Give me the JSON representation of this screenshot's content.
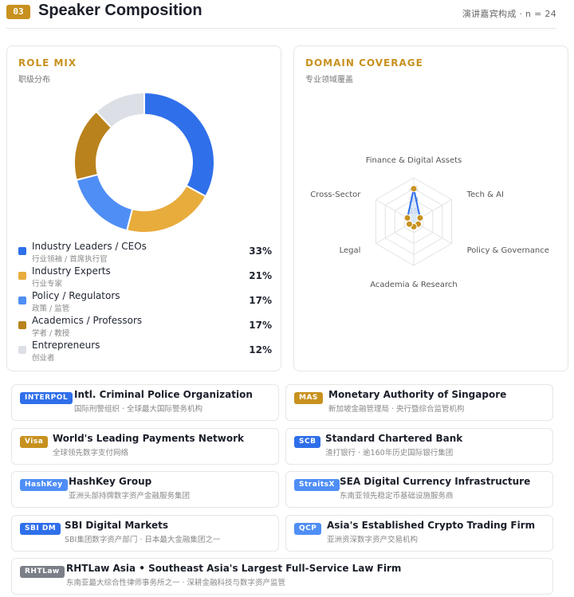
{
  "header": {
    "section_number": "03",
    "title": "Speaker Composition",
    "meta": "演讲嘉宾构成 · n = 24"
  },
  "role_mix": {
    "title": "ROLE MIX",
    "subtitle": "职级分布",
    "items": [
      {
        "label": "Industry Leaders / CEOs",
        "sub": "行业领袖 / 首席执行官",
        "pct": "33%",
        "value": 33,
        "color": "#2f6fea"
      },
      {
        "label": "Industry Experts",
        "sub": "行业专家",
        "pct": "21%",
        "value": 21,
        "color": "#e8ac3c"
      },
      {
        "label": "Policy / Regulators",
        "sub": "政策 / 监管",
        "pct": "17%",
        "value": 17,
        "color": "#4f8ef5"
      },
      {
        "label": "Academics / Professors",
        "sub": "学者 / 教授",
        "pct": "17%",
        "value": 17,
        "color": "#b9821c"
      },
      {
        "label": "Entrepreneurs",
        "sub": "创业者",
        "pct": "12%",
        "value": 12,
        "color": "#dcdfe6"
      }
    ]
  },
  "domain_coverage": {
    "title": "DOMAIN COVERAGE",
    "subtitle": "专业领域覆盖"
  },
  "chart_data": [
    {
      "type": "pie",
      "categories": [
        "Industry Leaders / CEOs",
        "Industry Experts",
        "Policy / Regulators",
        "Academics / Professors",
        "Entrepreneurs"
      ],
      "values": [
        33,
        21,
        17,
        17,
        12
      ]
    },
    {
      "type": "radar",
      "categories": [
        "Finance & Digital Assets",
        "Tech & AI",
        "Policy & Governance",
        "Academia & Research",
        "Legal",
        "Cross-Sector"
      ],
      "values": [
        45,
        10,
        7,
        7,
        7,
        10
      ],
      "rlim": [
        0,
        60
      ],
      "tick_labels": [
        "15",
        "30",
        "45"
      ],
      "colors": {
        "line": "#2f6fea",
        "fill": "#cfe0fb",
        "point": "#c8911f"
      }
    }
  ],
  "orgs": [
    {
      "badge": "INTERPOL",
      "badge_color": "#2f6fea",
      "name": "Intl. Criminal Police Organization",
      "desc": "国际刑警组织 · 全球最大国际警务机构"
    },
    {
      "badge": "MAS",
      "badge_color": "#c8911f",
      "name": "Monetary Authority of Singapore",
      "desc": "新加坡金融管理局 · 央行暨综合监管机构"
    },
    {
      "badge": "Visa",
      "badge_color": "#c8911f",
      "name": "World's Leading Payments Network",
      "desc": "全球领先数字支付网络"
    },
    {
      "badge": "SCB",
      "badge_color": "#2f6fea",
      "name": "Standard Chartered Bank",
      "desc": "渣打银行 · 逾160年历史国际银行集团"
    },
    {
      "badge": "HashKey",
      "badge_color": "#4f8ef5",
      "name": "HashKey Group",
      "desc": "亚洲头部持牌数字资产金融服务集团"
    },
    {
      "badge": "StraitsX",
      "badge_color": "#4f8ef5",
      "name": "SEA Digital Currency Infrastructure",
      "desc": "东南亚领先稳定币基础设施服务商"
    },
    {
      "badge": "SBI DM",
      "badge_color": "#2f6fea",
      "name": "SBI Digital Markets",
      "desc": "SBI集团数字资产部门 · 日本最大金融集团之一"
    },
    {
      "badge": "QCP",
      "badge_color": "#4f8ef5",
      "name": "Asia's Established Crypto Trading Firm",
      "desc": "亚洲资深数字资产交易机构"
    },
    {
      "badge": "RHTLaw",
      "badge_color": "#7b7f87",
      "name": "RHTLaw Asia • Southeast Asia's Largest Full-Service Law Firm",
      "desc": "东南亚最大综合性律师事务所之一 · 深耕金融科技与数字资产监管"
    }
  ]
}
